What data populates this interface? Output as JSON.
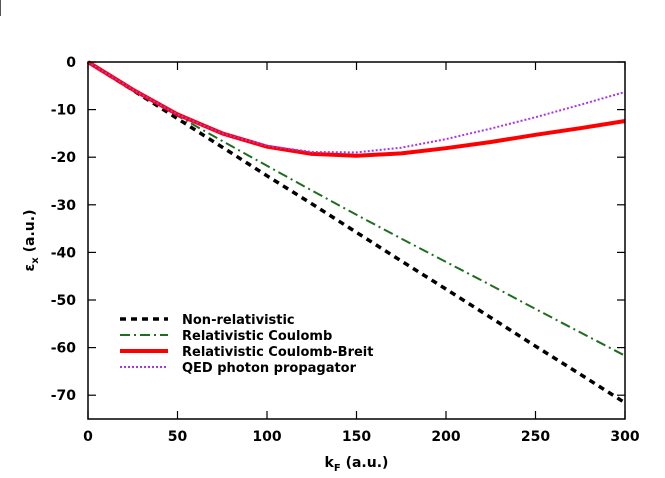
{
  "chart_data": {
    "type": "line",
    "title": "",
    "xlabel": "k",
    "xlabel_sub": "F",
    "xlabel_unit": "(a.u.)",
    "ylabel": "ε",
    "ylabel_sub": "x",
    "ylabel_unit": "(a.u.)",
    "xlim": [
      0,
      300
    ],
    "ylim": [
      -75,
      0
    ],
    "xticks": [
      0,
      50,
      100,
      150,
      200,
      250,
      300
    ],
    "yticks": [
      0,
      -10,
      -20,
      -30,
      -40,
      -50,
      -60,
      -70
    ],
    "grid": false,
    "legend_position": "bottom-left",
    "series": [
      {
        "name": "Non-relativistic",
        "color": "#000000",
        "style": "dashed",
        "x": [
          0,
          25,
          50,
          75,
          100,
          125,
          150,
          175,
          200,
          225,
          250,
          275,
          300
        ],
        "y": [
          0,
          -5.9,
          -11.9,
          -17.9,
          -23.9,
          -29.8,
          -35.8,
          -41.8,
          -47.7,
          -53.7,
          -59.7,
          -65.6,
          -71.6
        ]
      },
      {
        "name": "Relativistic Coulomb",
        "color": "#1e6e1e",
        "style": "dashdot",
        "x": [
          0,
          25,
          50,
          75,
          100,
          125,
          150,
          175,
          200,
          225,
          250,
          275,
          300
        ],
        "y": [
          0,
          -5.8,
          -11.3,
          -16.6,
          -21.8,
          -27.0,
          -32.1,
          -37.1,
          -42.0,
          -46.9,
          -51.9,
          -56.8,
          -61.7
        ]
      },
      {
        "name": "Relativistic Coulomb-Breit",
        "color": "#ff0000",
        "style": "solid",
        "x": [
          0,
          25,
          50,
          75,
          100,
          125,
          150,
          175,
          200,
          225,
          250,
          275,
          300
        ],
        "y": [
          0,
          -5.8,
          -11.0,
          -15.0,
          -17.8,
          -19.3,
          -19.7,
          -19.2,
          -18.1,
          -16.8,
          -15.3,
          -13.9,
          -12.4
        ]
      },
      {
        "name": "QED photon propagator",
        "color": "#aa33ee",
        "style": "dotted",
        "x": [
          0,
          25,
          50,
          75,
          100,
          125,
          150,
          175,
          200,
          225,
          250,
          275,
          300
        ],
        "y": [
          0,
          -5.8,
          -11.0,
          -15.0,
          -17.6,
          -18.9,
          -19.0,
          -18.0,
          -16.2,
          -14.0,
          -11.6,
          -9.0,
          -6.3
        ]
      }
    ]
  }
}
